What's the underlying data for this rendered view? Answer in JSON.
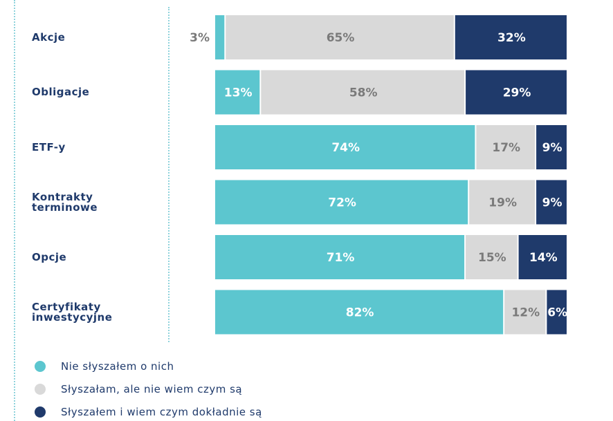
{
  "chart_data": {
    "type": "bar",
    "orientation": "horizontal",
    "stacked": true,
    "categories": [
      "Akcje",
      "Obligacje",
      "ETF-y",
      "Kontrakty terminowe",
      "Opcje",
      "Certyfikaty inwestycyjne"
    ],
    "category_lines": [
      [
        "Akcje"
      ],
      [
        "Obligacje"
      ],
      [
        "ETF-y"
      ],
      [
        "Kontrakty",
        "terminowe"
      ],
      [
        "Opcje"
      ],
      [
        "Certyfikaty",
        "inwestycyjne"
      ]
    ],
    "series": [
      {
        "name": "Nie słyszałem o nich",
        "color": "#5cc6cf",
        "values": [
          3,
          13,
          74,
          72,
          71,
          82
        ],
        "labels": [
          "3%",
          "13%",
          "74%",
          "72%",
          "71%",
          "82%"
        ]
      },
      {
        "name": "Słyszałam, ale nie wiem czym są",
        "color": "#d9d9d9",
        "values": [
          65,
          58,
          17,
          19,
          15,
          12
        ],
        "labels": [
          "65%",
          "58%",
          "17%",
          "19%",
          "15%",
          "12%"
        ]
      },
      {
        "name": "Słyszałem i wiem czym dokładnie są",
        "color": "#1f3a6b",
        "values": [
          32,
          29,
          9,
          9,
          14,
          6
        ],
        "labels": [
          "32%",
          "29%",
          "9%",
          "9%",
          "14%",
          "6%"
        ]
      }
    ],
    "xlim": [
      0,
      100
    ],
    "unit": "%",
    "legend_position": "bottom-left",
    "grid": false
  },
  "legend": {
    "items": [
      {
        "label": "Nie słyszałem o nich",
        "color": "#5cc6cf"
      },
      {
        "label": "Słyszałam, ale nie wiem czym są",
        "color": "#d9d9d9"
      },
      {
        "label": "Słyszałem i wiem czym dokładnie są",
        "color": "#1f3a6b"
      }
    ]
  }
}
